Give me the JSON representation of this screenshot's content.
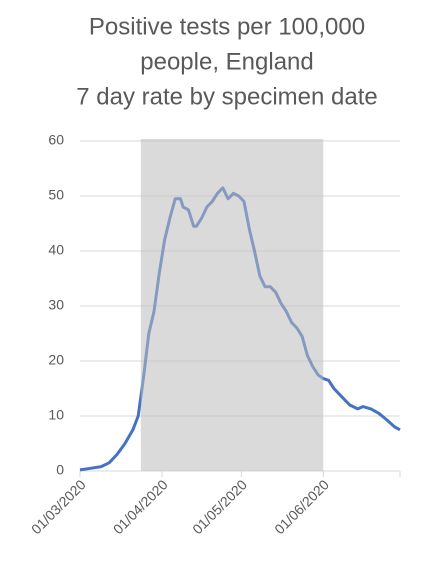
{
  "chart_data": {
    "type": "line",
    "title": [
      "Positive tests per 100,000",
      "people, England",
      "7 day rate by specimen date"
    ],
    "x": [
      "2020-03-01",
      "2020-03-05",
      "2020-03-09",
      "2020-03-12",
      "2020-03-15",
      "2020-03-18",
      "2020-03-21",
      "2020-03-23",
      "2020-03-25",
      "2020-03-27",
      "2020-03-29",
      "2020-03-31",
      "2020-04-02",
      "2020-04-04",
      "2020-04-06",
      "2020-04-08",
      "2020-04-09",
      "2020-04-11",
      "2020-04-13",
      "2020-04-14",
      "2020-04-16",
      "2020-04-18",
      "2020-04-20",
      "2020-04-22",
      "2020-04-24",
      "2020-04-26",
      "2020-04-28",
      "2020-04-30",
      "2020-05-02",
      "2020-05-04",
      "2020-05-06",
      "2020-05-08",
      "2020-05-10",
      "2020-05-12",
      "2020-05-14",
      "2020-05-16",
      "2020-05-18",
      "2020-05-20",
      "2020-05-22",
      "2020-05-24",
      "2020-05-26",
      "2020-05-28",
      "2020-05-30",
      "2020-06-01",
      "2020-06-03",
      "2020-06-05",
      "2020-06-08",
      "2020-06-11",
      "2020-06-14",
      "2020-06-16",
      "2020-06-19",
      "2020-06-22",
      "2020-06-25",
      "2020-06-28",
      "2020-06-30"
    ],
    "series": [
      {
        "color": "#4472c4",
        "values": [
          0.2,
          0.5,
          0.8,
          1.5,
          3,
          5,
          7.5,
          10,
          17,
          25,
          29,
          36,
          42,
          46,
          49.5,
          49.5,
          48,
          47.5,
          44.5,
          44.5,
          46,
          48,
          49,
          50.5,
          51.5,
          49.5,
          50.5,
          50,
          49,
          44,
          40,
          35.5,
          33.5,
          33.5,
          32.5,
          30.5,
          29,
          27,
          26,
          24.5,
          21,
          19,
          17.5,
          16.8,
          16.5,
          15,
          13.5,
          12,
          11.3,
          11.7,
          11.3,
          10.5,
          9.3,
          8,
          7.5
        ]
      }
    ],
    "xlim": [
      "2020-03-01",
      "2020-06-30"
    ],
    "xticks": [
      {
        "value": "2020-03-01",
        "label": "01/03/2020"
      },
      {
        "value": "2020-04-01",
        "label": "01/04/2020"
      },
      {
        "value": "2020-05-01",
        "label": "01/05/2020"
      },
      {
        "value": "2020-06-01",
        "label": "01/06/2020"
      },
      {
        "value": "2020-06-30",
        "label": ""
      }
    ],
    "ylim": [
      0,
      60
    ],
    "yticks": [
      0,
      10,
      20,
      30,
      40,
      50,
      60
    ],
    "grid": true,
    "shaded_span": [
      "2020-03-24",
      "2020-06-01"
    ],
    "shade_color": "#bbbbbb"
  }
}
